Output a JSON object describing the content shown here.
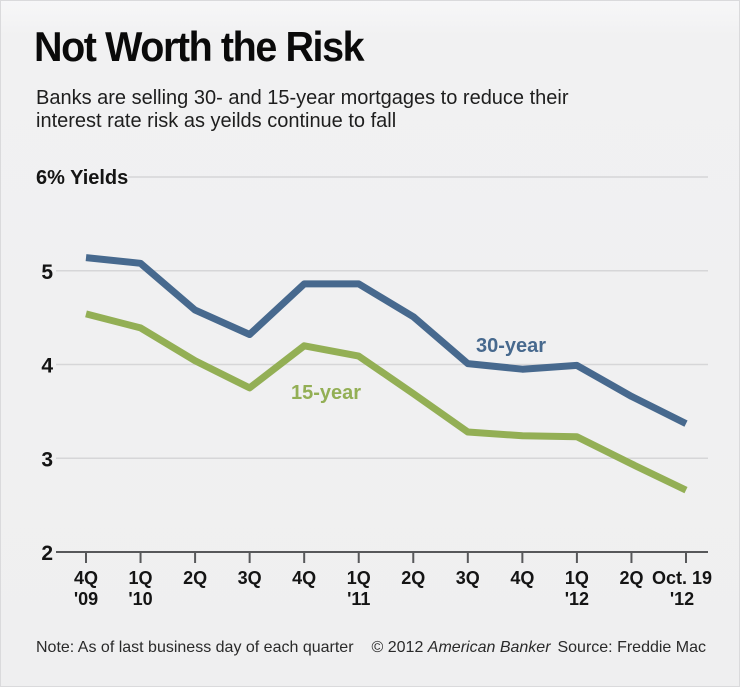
{
  "header": {
    "title": "Not Worth the Risk",
    "subtitle_line1": "Banks are selling 30- and 15-year mortgages to reduce their",
    "subtitle_line2": "interest rate risk as yeilds continue to fall"
  },
  "chart_data": {
    "type": "line",
    "title": "Not Worth the Risk",
    "subtitle": "Banks are selling 30- and 15-year mortgages to reduce their interest rate risk as yeilds continue to fall",
    "unit_label": "6% Yields",
    "categories": [
      "4Q '09",
      "1Q '10",
      "2Q",
      "3Q",
      "4Q",
      "1Q '11",
      "2Q",
      "3Q",
      "4Q",
      "1Q '12",
      "2Q",
      "Oct. 19 '12"
    ],
    "category_lines": [
      [
        "4Q",
        "'09"
      ],
      [
        "1Q",
        "'10"
      ],
      [
        "2Q"
      ],
      [
        "3Q"
      ],
      [
        "4Q"
      ],
      [
        "1Q",
        "'11"
      ],
      [
        "2Q"
      ],
      [
        "3Q"
      ],
      [
        "4Q"
      ],
      [
        "1Q",
        "'12"
      ],
      [
        "2Q"
      ],
      [
        "Oct. 19",
        "'12"
      ]
    ],
    "series": [
      {
        "name": "30-year",
        "color": "#47698e",
        "values": [
          5.14,
          5.08,
          4.58,
          4.32,
          4.86,
          4.86,
          4.51,
          4.01,
          3.95,
          3.99,
          3.66,
          3.37
        ]
      },
      {
        "name": "15-year",
        "color": "#93af55",
        "values": [
          4.54,
          4.39,
          4.04,
          3.75,
          4.2,
          4.09,
          3.69,
          3.28,
          3.24,
          3.23,
          2.94,
          2.66
        ]
      }
    ],
    "ylim": [
      2,
      6
    ],
    "yticks": [
      5,
      4,
      3,
      2
    ],
    "top_gridline_value": 6,
    "grid": true,
    "legend": "inline-labels"
  },
  "footer": {
    "note": "Note: As of last business day of each quarter",
    "copyright_prefix": "© 2012",
    "copyright_brand": "American Banker",
    "source": "Source: Freddie Mac"
  },
  "colors": {
    "blue": "#47698e",
    "green": "#93af55",
    "gridline": "#d6d6d8",
    "axis": "#57585a",
    "label_text": "#141414",
    "background": "#efeff0"
  }
}
